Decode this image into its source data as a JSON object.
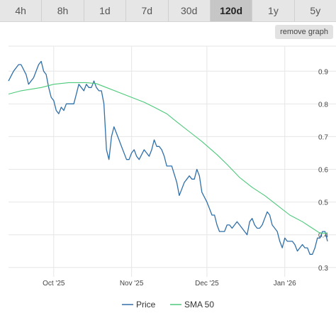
{
  "tabs": [
    {
      "label": "4h"
    },
    {
      "label": "8h"
    },
    {
      "label": "1d"
    },
    {
      "label": "7d"
    },
    {
      "label": "30d"
    },
    {
      "label": "120d",
      "active": true
    },
    {
      "label": "1y"
    },
    {
      "label": "5y"
    }
  ],
  "remove_graph_label": "remove graph",
  "chart_data": {
    "type": "line",
    "x_axis": {
      "range": [
        "2025-09-13",
        "2026-01-12"
      ],
      "ticks": [
        {
          "label": "Oct '25",
          "date": "2025-10-01"
        },
        {
          "label": "Nov '25",
          "date": "2025-11-01"
        },
        {
          "label": "Dec '25",
          "date": "2025-12-01"
        },
        {
          "label": "Jan '26",
          "date": "2026-01-01"
        }
      ]
    },
    "y_axis": {
      "range": [
        0.28,
        0.97
      ],
      "ticks": [
        0.9,
        0.8,
        0.7,
        0.6,
        0.5,
        0.4,
        0.3
      ],
      "tick_labels": [
        "0.9",
        "0.8",
        "0.7",
        "0.6",
        "0.5",
        "0.4",
        "0.3"
      ],
      "position": "right"
    },
    "grid": true,
    "legend": "bottom-center",
    "series": [
      {
        "name": "Price",
        "color": "#2f6fa8",
        "points": [
          [
            "2025-09-13",
            0.87
          ],
          [
            "2025-09-15",
            0.9
          ],
          [
            "2025-09-17",
            0.92
          ],
          [
            "2025-09-18",
            0.92
          ],
          [
            "2025-09-20",
            0.89
          ],
          [
            "2025-09-21",
            0.86
          ],
          [
            "2025-09-23",
            0.88
          ],
          [
            "2025-09-25",
            0.92
          ],
          [
            "2025-09-26",
            0.93
          ],
          [
            "2025-09-27",
            0.9
          ],
          [
            "2025-09-28",
            0.89
          ],
          [
            "2025-09-29",
            0.85
          ],
          [
            "2025-09-30",
            0.82
          ],
          [
            "2025-10-01",
            0.81
          ],
          [
            "2025-10-02",
            0.78
          ],
          [
            "2025-10-03",
            0.77
          ],
          [
            "2025-10-04",
            0.79
          ],
          [
            "2025-10-05",
            0.78
          ],
          [
            "2025-10-06",
            0.8
          ],
          [
            "2025-10-07",
            0.8
          ],
          [
            "2025-10-09",
            0.8
          ],
          [
            "2025-10-10",
            0.83
          ],
          [
            "2025-10-11",
            0.86
          ],
          [
            "2025-10-12",
            0.85
          ],
          [
            "2025-10-13",
            0.84
          ],
          [
            "2025-10-14",
            0.86
          ],
          [
            "2025-10-15",
            0.85
          ],
          [
            "2025-10-16",
            0.85
          ],
          [
            "2025-10-17",
            0.87
          ],
          [
            "2025-10-18",
            0.85
          ],
          [
            "2025-10-19",
            0.84
          ],
          [
            "2025-10-20",
            0.84
          ],
          [
            "2025-10-21",
            0.8
          ],
          [
            "2025-10-22",
            0.66
          ],
          [
            "2025-10-23",
            0.63
          ],
          [
            "2025-10-24",
            0.7
          ],
          [
            "2025-10-25",
            0.73
          ],
          [
            "2025-10-27",
            0.69
          ],
          [
            "2025-10-28",
            0.67
          ],
          [
            "2025-10-30",
            0.63
          ],
          [
            "2025-10-31",
            0.63
          ],
          [
            "2025-11-01",
            0.65
          ],
          [
            "2025-11-02",
            0.66
          ],
          [
            "2025-11-03",
            0.64
          ],
          [
            "2025-11-04",
            0.63
          ],
          [
            "2025-11-06",
            0.66
          ],
          [
            "2025-11-08",
            0.64
          ],
          [
            "2025-11-09",
            0.66
          ],
          [
            "2025-11-10",
            0.69
          ],
          [
            "2025-11-11",
            0.67
          ],
          [
            "2025-11-12",
            0.67
          ],
          [
            "2025-11-13",
            0.66
          ],
          [
            "2025-11-14",
            0.64
          ],
          [
            "2025-11-15",
            0.61
          ],
          [
            "2025-11-17",
            0.61
          ],
          [
            "2025-11-19",
            0.56
          ],
          [
            "2025-11-20",
            0.52
          ],
          [
            "2025-11-21",
            0.54
          ],
          [
            "2025-11-22",
            0.56
          ],
          [
            "2025-11-23",
            0.57
          ],
          [
            "2025-11-24",
            0.58
          ],
          [
            "2025-11-25",
            0.57
          ],
          [
            "2025-11-26",
            0.57
          ],
          [
            "2025-11-27",
            0.6
          ],
          [
            "2025-11-28",
            0.58
          ],
          [
            "2025-11-29",
            0.53
          ],
          [
            "2025-12-01",
            0.5
          ],
          [
            "2025-12-02",
            0.48
          ],
          [
            "2025-12-03",
            0.46
          ],
          [
            "2025-12-04",
            0.46
          ],
          [
            "2025-12-05",
            0.43
          ],
          [
            "2025-12-06",
            0.41
          ],
          [
            "2025-12-07",
            0.41
          ],
          [
            "2025-12-08",
            0.41
          ],
          [
            "2025-12-09",
            0.43
          ],
          [
            "2025-12-10",
            0.43
          ],
          [
            "2025-12-11",
            0.42
          ],
          [
            "2025-12-12",
            0.43
          ],
          [
            "2025-12-13",
            0.44
          ],
          [
            "2025-12-14",
            0.43
          ],
          [
            "2025-12-16",
            0.41
          ],
          [
            "2025-12-17",
            0.4
          ],
          [
            "2025-12-18",
            0.44
          ],
          [
            "2025-12-19",
            0.45
          ],
          [
            "2025-12-20",
            0.43
          ],
          [
            "2025-12-21",
            0.42
          ],
          [
            "2025-12-22",
            0.42
          ],
          [
            "2025-12-23",
            0.43
          ],
          [
            "2025-12-24",
            0.45
          ],
          [
            "2025-12-25",
            0.47
          ],
          [
            "2025-12-26",
            0.46
          ],
          [
            "2025-12-27",
            0.43
          ],
          [
            "2025-12-28",
            0.42
          ],
          [
            "2025-12-29",
            0.41
          ],
          [
            "2025-12-30",
            0.38
          ],
          [
            "2025-12-31",
            0.36
          ],
          [
            "2026-01-01",
            0.39
          ],
          [
            "2026-01-02",
            0.38
          ],
          [
            "2026-01-03",
            0.38
          ],
          [
            "2026-01-04",
            0.38
          ],
          [
            "2026-01-05",
            0.37
          ],
          [
            "2026-01-06",
            0.35
          ],
          [
            "2026-01-07",
            0.36
          ],
          [
            "2026-01-08",
            0.37
          ],
          [
            "2026-01-09",
            0.36
          ],
          [
            "2026-01-10",
            0.36
          ],
          [
            "2026-01-11",
            0.34
          ],
          [
            "2026-01-12",
            0.34
          ],
          [
            "2026-01-13",
            0.36
          ],
          [
            "2026-01-14",
            0.39
          ],
          [
            "2026-01-15",
            0.39
          ],
          [
            "2026-01-16",
            0.41
          ],
          [
            "2026-01-17",
            0.41
          ],
          [
            "2026-01-18",
            0.38
          ]
        ]
      },
      {
        "name": "SMA 50",
        "color": "#4cc97a",
        "points": [
          [
            "2025-09-13",
            0.83
          ],
          [
            "2025-09-18",
            0.84
          ],
          [
            "2025-09-26",
            0.85
          ],
          [
            "2025-10-01",
            0.86
          ],
          [
            "2025-10-07",
            0.865
          ],
          [
            "2025-10-14",
            0.865
          ],
          [
            "2025-10-18",
            0.862
          ],
          [
            "2025-10-22",
            0.85
          ],
          [
            "2025-10-27",
            0.835
          ],
          [
            "2025-11-01",
            0.82
          ],
          [
            "2025-11-06",
            0.805
          ],
          [
            "2025-11-10",
            0.79
          ],
          [
            "2025-11-15",
            0.77
          ],
          [
            "2025-11-19",
            0.745
          ],
          [
            "2025-11-24",
            0.715
          ],
          [
            "2025-11-29",
            0.685
          ],
          [
            "2025-12-05",
            0.645
          ],
          [
            "2025-12-09",
            0.615
          ],
          [
            "2025-12-14",
            0.575
          ],
          [
            "2025-12-19",
            0.545
          ],
          [
            "2025-12-24",
            0.52
          ],
          [
            "2025-12-29",
            0.49
          ],
          [
            "2026-01-03",
            0.46
          ],
          [
            "2026-01-08",
            0.44
          ],
          [
            "2026-01-12",
            0.42
          ],
          [
            "2026-01-15",
            0.405
          ],
          [
            "2026-01-18",
            0.405
          ]
        ]
      }
    ]
  }
}
